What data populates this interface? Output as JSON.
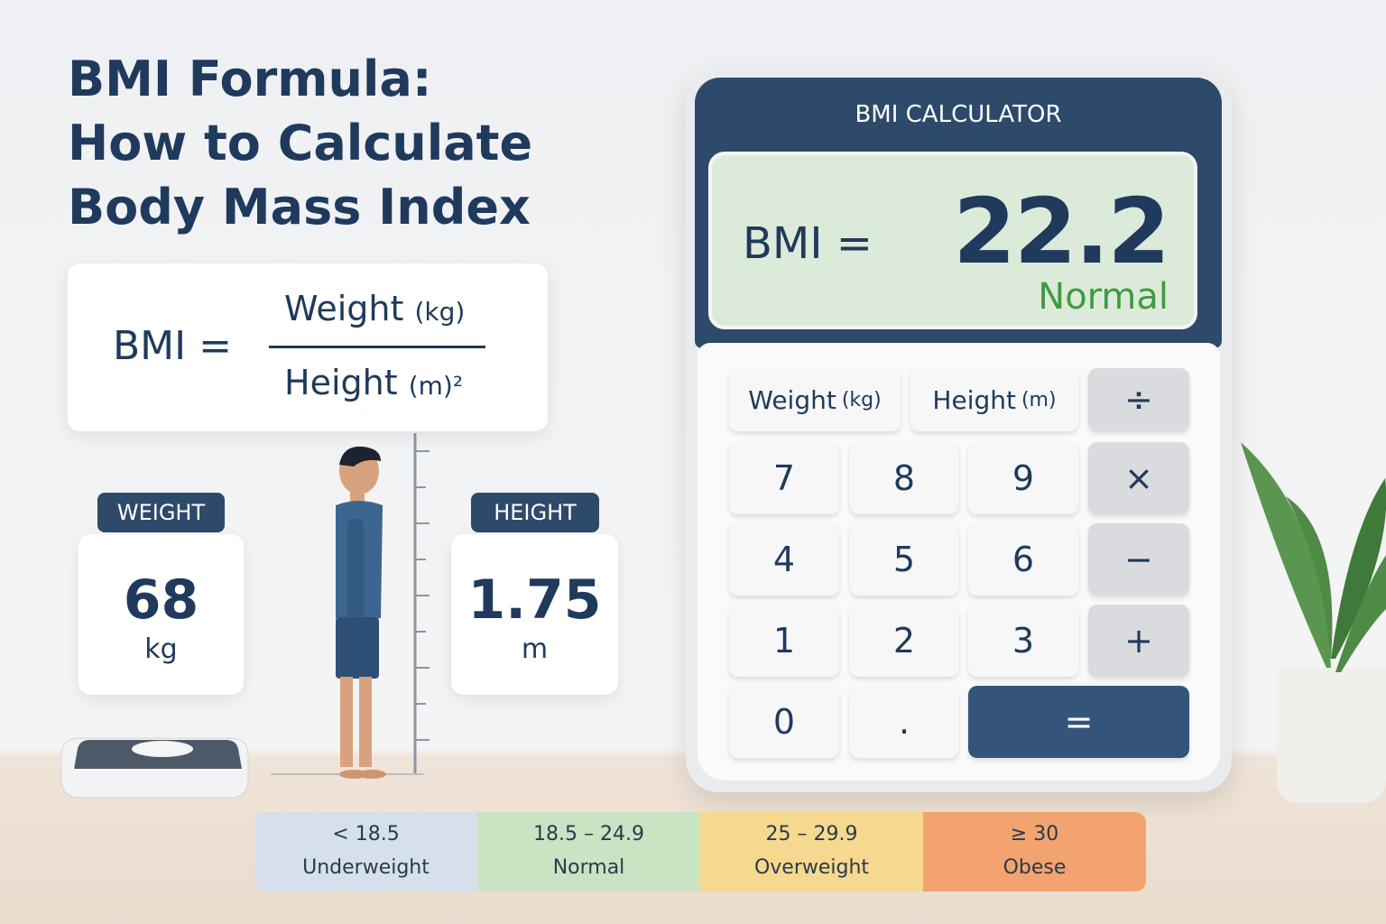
{
  "title": {
    "lines": [
      "BMI Formula:",
      "How to Calculate",
      "Body Mass Index"
    ]
  },
  "formula": {
    "lhs": "BMI =",
    "numerator": {
      "text": "Weight",
      "unit": "(kg)"
    },
    "denominator": {
      "text": "Height",
      "unit": "(m)²"
    }
  },
  "measurements": [
    {
      "label": "WEIGHT",
      "value": "68",
      "unit": "kg"
    },
    {
      "label": "HEIGHT",
      "value": "1.75",
      "unit": "m"
    }
  ],
  "calculator": {
    "title": "BMI CALCULATOR",
    "display": {
      "label": "BMI =",
      "value": "22.2",
      "status": "Normal"
    },
    "keys": [
      [
        {
          "text": "Weight",
          "unit": "(kg)"
        },
        {
          "text": "Height",
          "unit": "(m)"
        },
        {
          "text": "÷"
        }
      ],
      [
        {
          "text": "7"
        },
        {
          "text": "8"
        },
        {
          "text": "9"
        },
        {
          "text": "×"
        }
      ],
      [
        {
          "text": "4"
        },
        {
          "text": "5"
        },
        {
          "text": "6"
        },
        {
          "text": "−"
        }
      ],
      [
        {
          "text": "1"
        },
        {
          "text": "2"
        },
        {
          "text": "3"
        },
        {
          "text": "+"
        }
      ],
      [
        {
          "text": "0"
        },
        {
          "text": "."
        },
        {
          "text": "="
        }
      ]
    ]
  },
  "categories": [
    {
      "range": "< 18.5",
      "label": "Underweight"
    },
    {
      "range": "18.5 – 24.9",
      "label": "Normal"
    },
    {
      "range": "25 – 29.9",
      "label": "Overweight"
    },
    {
      "range": "≥ 30",
      "label": "Obese"
    }
  ]
}
